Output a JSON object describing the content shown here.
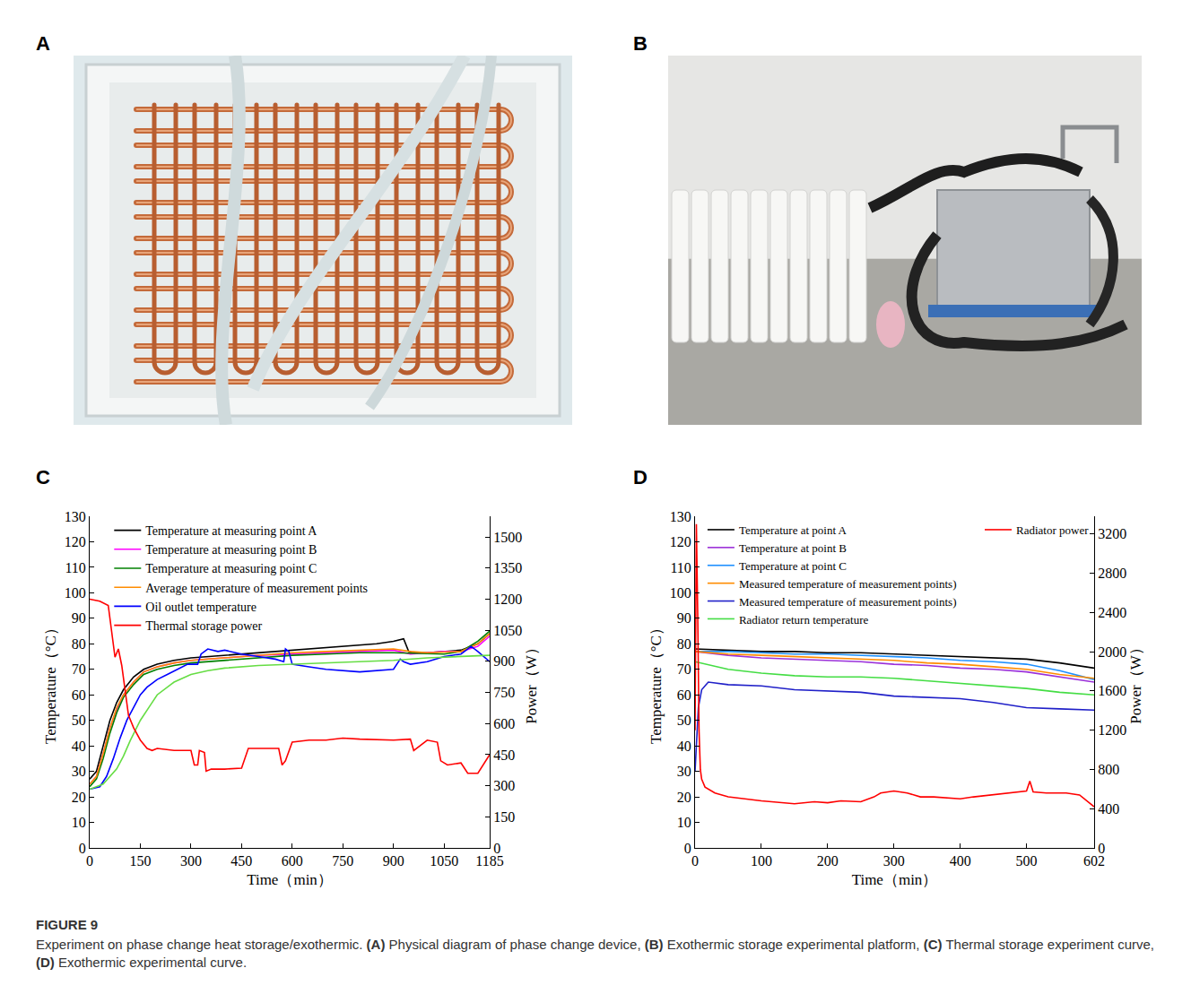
{
  "figure": {
    "label": "FIGURE 9",
    "caption": "Experiment on phase change heat storage/exothermic. (A) Physical diagram of phase change device, (B) Exothermic storage experimental platform, (C) Thermal storage experiment curve, (D) Exothermic experimental curve.",
    "photos": [
      {
        "panel": "A"
      },
      {
        "panel": "B"
      }
    ]
  },
  "chart_data": [
    {
      "type": "line",
      "title": "C",
      "x_label": "Time（min）",
      "y_label": "Temperature（°C）",
      "y2_label": "Power（W）",
      "xlim": [
        0,
        1185
      ],
      "xticks": [
        0,
        150,
        300,
        450,
        600,
        750,
        900,
        1050,
        1185
      ],
      "ylim": [
        0,
        130
      ],
      "yticks": [
        0,
        10,
        20,
        30,
        40,
        50,
        60,
        70,
        80,
        90,
        100,
        110,
        120,
        130
      ],
      "y2lim": [
        0,
        1600
      ],
      "y2ticks": [
        0,
        150,
        300,
        450,
        600,
        750,
        900,
        1050,
        1200,
        1350,
        1500
      ],
      "grid": false,
      "legend": "upper left",
      "series": [
        {
          "name": "Temperature at measuring point A",
          "color": "#000000",
          "x": [
            0,
            20,
            40,
            60,
            80,
            100,
            130,
            160,
            200,
            250,
            300,
            350,
            400,
            450,
            500,
            550,
            600,
            650,
            700,
            750,
            800,
            850,
            900,
            930,
            945,
            960,
            1000,
            1050,
            1100,
            1150,
            1185
          ],
          "values": [
            27,
            30,
            40,
            50,
            57,
            62,
            67,
            70,
            72,
            73.5,
            74.5,
            75,
            75.5,
            76,
            76.5,
            77,
            77.5,
            78,
            78.5,
            79,
            79.5,
            80,
            81,
            82,
            77,
            76.5,
            76.5,
            77,
            77.5,
            80,
            84
          ]
        },
        {
          "name": "Temperature at measuring point B",
          "color": "#ff00ff",
          "x": [
            0,
            20,
            40,
            60,
            80,
            100,
            130,
            160,
            200,
            250,
            300,
            400,
            500,
            600,
            700,
            800,
            900,
            950,
            1000,
            1050,
            1100,
            1150,
            1185
          ],
          "values": [
            25,
            28,
            37,
            47,
            54,
            60,
            65,
            69,
            71,
            72.5,
            73.5,
            74.5,
            75.5,
            76,
            76.5,
            77,
            77.5,
            76,
            76.5,
            77,
            77,
            79,
            83
          ]
        },
        {
          "name": "Temperature at measuring point C",
          "color": "#008000",
          "x": [
            0,
            20,
            40,
            60,
            80,
            100,
            130,
            160,
            200,
            250,
            300,
            400,
            500,
            600,
            700,
            800,
            900,
            1000,
            1050,
            1100,
            1150,
            1185
          ],
          "values": [
            24,
            27,
            35,
            45,
            53,
            59,
            64,
            68,
            70,
            71.5,
            72.5,
            73.5,
            74.5,
            75.5,
            76,
            76.5,
            76.5,
            76,
            76,
            77,
            81,
            85
          ]
        },
        {
          "name": "Average temperature of measurement points",
          "color": "#ff8c00",
          "x": [
            0,
            20,
            40,
            60,
            80,
            100,
            130,
            160,
            200,
            250,
            300,
            400,
            500,
            600,
            700,
            800,
            900,
            950,
            1000,
            1100,
            1150,
            1185
          ],
          "values": [
            25,
            28,
            37,
            47,
            55,
            60,
            65,
            69,
            71,
            72.5,
            73.5,
            74.5,
            75.5,
            76.5,
            77,
            77.5,
            78,
            77,
            76.5,
            77,
            80,
            84
          ]
        },
        {
          "name": "Oil outlet temperature",
          "color": "#0000ff",
          "x": [
            0,
            30,
            50,
            70,
            90,
            110,
            130,
            150,
            170,
            200,
            230,
            260,
            290,
            320,
            330,
            350,
            380,
            400,
            450,
            500,
            550,
            575,
            580,
            590,
            600,
            650,
            700,
            800,
            900,
            920,
            930,
            950,
            1000,
            1050,
            1100,
            1130,
            1150,
            1185
          ],
          "values": [
            23,
            24,
            28,
            35,
            43,
            50,
            55,
            60,
            63,
            66,
            68,
            70,
            72,
            72,
            76,
            78,
            77,
            77.5,
            76,
            75,
            74,
            73,
            78,
            77,
            72,
            71,
            70,
            69,
            70,
            74,
            73,
            72,
            73,
            75,
            76,
            79,
            77,
            73
          ]
        },
        {
          "name": "Thermal storage power",
          "color": "#ff0000",
          "axis": "y2",
          "x": [
            0,
            30,
            55,
            65,
            75,
            85,
            95,
            105,
            115,
            130,
            150,
            170,
            185,
            200,
            250,
            300,
            310,
            320,
            325,
            340,
            345,
            360,
            400,
            450,
            470,
            480,
            560,
            570,
            580,
            600,
            650,
            700,
            750,
            800,
            900,
            950,
            960,
            1000,
            1030,
            1040,
            1060,
            1100,
            1120,
            1150,
            1185
          ],
          "values": [
            1200,
            1190,
            1170,
            1050,
            920,
            960,
            880,
            760,
            640,
            580,
            520,
            480,
            470,
            480,
            470,
            470,
            400,
            400,
            470,
            460,
            370,
            380,
            380,
            385,
            480,
            480,
            480,
            400,
            420,
            510,
            520,
            520,
            530,
            525,
            520,
            525,
            470,
            520,
            510,
            420,
            400,
            410,
            360,
            360,
            450
          ]
        },
        {
          "color": "#66dd44",
          "x": [
            0,
            40,
            80,
            100,
            120,
            150,
            180,
            200,
            250,
            300,
            350,
            400,
            500,
            600,
            700,
            800,
            900,
            1000,
            1100,
            1185
          ],
          "values": [
            23,
            25,
            31,
            36,
            42,
            50,
            56,
            60,
            65,
            68,
            69.5,
            70.5,
            71.5,
            72,
            72.5,
            73,
            73.5,
            74.5,
            75,
            75.5
          ]
        }
      ]
    },
    {
      "type": "line",
      "title": "D",
      "x_label": "Time（min）",
      "y_label": "Temperature（°C）",
      "y2_label": "Power（W）",
      "xlim": [
        0,
        602
      ],
      "xticks": [
        0,
        100,
        200,
        300,
        400,
        500,
        602
      ],
      "ylim": [
        0,
        130
      ],
      "yticks": [
        0,
        10,
        20,
        30,
        40,
        50,
        60,
        70,
        80,
        90,
        100,
        110,
        120,
        130
      ],
      "y2lim": [
        0,
        3380
      ],
      "y2ticks": [
        0,
        400,
        800,
        1200,
        1600,
        2000,
        2400,
        2800,
        3200
      ],
      "grid": false,
      "legend": "top",
      "series": [
        {
          "name": "Temperature at point A",
          "color": "#000000",
          "x": [
            0,
            50,
            100,
            150,
            200,
            250,
            300,
            350,
            400,
            450,
            500,
            550,
            602
          ],
          "values": [
            78,
            77.5,
            77,
            77,
            76.5,
            76.5,
            76,
            75.5,
            75,
            74.5,
            74,
            72.5,
            70.5
          ]
        },
        {
          "name": "Temperature at point B",
          "color": "#9b30d9",
          "x": [
            0,
            50,
            100,
            150,
            200,
            250,
            300,
            350,
            400,
            450,
            500,
            550,
            602
          ],
          "values": [
            77,
            75.5,
            74.5,
            74,
            73.5,
            73,
            72,
            71.5,
            70.5,
            70,
            69,
            67,
            65
          ]
        },
        {
          "name": "Temperature at point C",
          "color": "#1e90ff",
          "x": [
            0,
            50,
            100,
            150,
            200,
            250,
            300,
            350,
            400,
            450,
            500,
            550,
            602
          ],
          "values": [
            77,
            77,
            76.5,
            76,
            76,
            75.5,
            75,
            74.5,
            73.5,
            73,
            72,
            69.5,
            66
          ]
        },
        {
          "name": "Measured temperature of measurement points)",
          "color": "#ff8c00",
          "x": [
            0,
            50,
            100,
            150,
            200,
            250,
            300,
            350,
            400,
            450,
            500,
            550,
            602
          ],
          "values": [
            77,
            76,
            75.5,
            75,
            74.5,
            74,
            73.5,
            72.5,
            72,
            71,
            70,
            68,
            66.5
          ]
        },
        {
          "name": "Measured temperature of measurement points)",
          "color": "#2020c8",
          "x": [
            0,
            5,
            10,
            20,
            50,
            100,
            150,
            200,
            250,
            300,
            350,
            400,
            450,
            500,
            550,
            602
          ],
          "values": [
            30,
            55,
            62,
            65,
            64,
            63.5,
            62,
            61.5,
            61,
            59.5,
            59,
            58.5,
            57,
            55,
            54.5,
            54
          ]
        },
        {
          "name": "Radiator return temperature",
          "color": "#44dd44",
          "x": [
            0,
            50,
            100,
            150,
            200,
            250,
            300,
            350,
            400,
            450,
            500,
            550,
            602
          ],
          "values": [
            73,
            70,
            68.5,
            67.5,
            67,
            67,
            66.5,
            65.5,
            64.5,
            63.5,
            62.5,
            61,
            60
          ]
        },
        {
          "name": "Radiator power",
          "color": "#ff0000",
          "axis": "y2",
          "x": [
            0,
            2,
            4,
            6,
            8,
            10,
            15,
            20,
            30,
            50,
            100,
            150,
            180,
            200,
            220,
            250,
            270,
            280,
            300,
            320,
            340,
            360,
            400,
            420,
            450,
            480,
            500,
            505,
            510,
            530,
            560,
            580,
            602
          ],
          "values": [
            1200,
            3300,
            2400,
            1200,
            800,
            700,
            620,
            600,
            560,
            520,
            480,
            450,
            470,
            460,
            480,
            470,
            520,
            560,
            580,
            560,
            520,
            520,
            500,
            520,
            540,
            560,
            580,
            680,
            570,
            560,
            560,
            540,
            420
          ]
        }
      ]
    }
  ]
}
